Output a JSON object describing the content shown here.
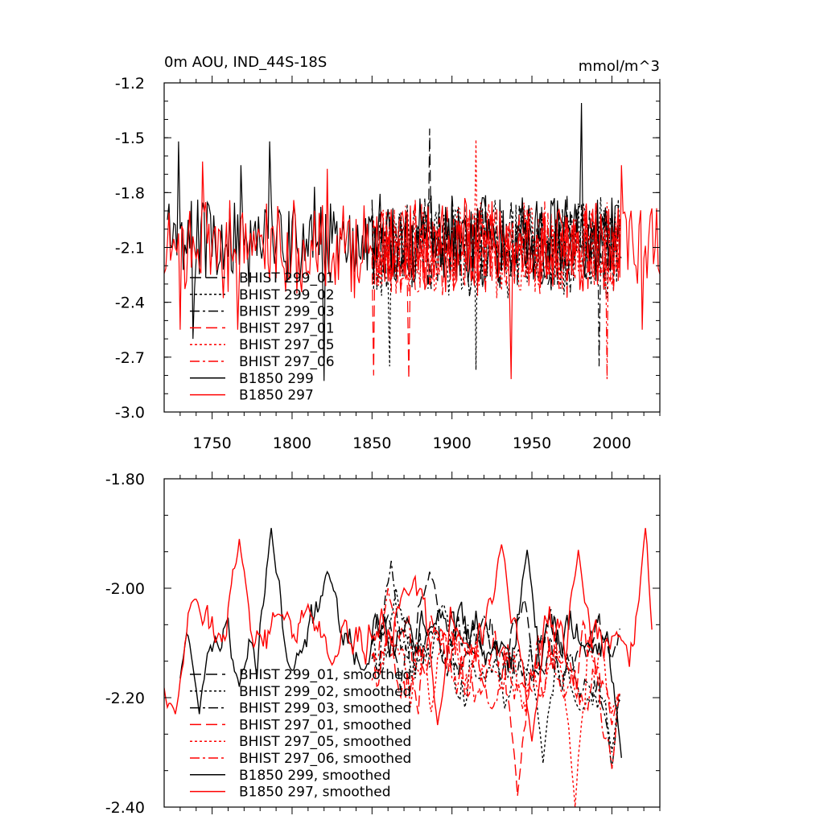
{
  "chart_data": [
    {
      "type": "line",
      "title": "0m AOU, IND_44S-18S",
      "units": "mmol/m^3",
      "xlim": [
        1720,
        2030
      ],
      "ylim": [
        -3.0,
        -1.2
      ],
      "x_ticks": [
        1750,
        1800,
        1850,
        1900,
        1950,
        2000
      ],
      "y_ticks": [
        -3.0,
        -2.7,
        -2.4,
        -2.1,
        -1.8,
        -1.5,
        -1.2
      ],
      "y_tick_labels": [
        "-3.0",
        "-2.7",
        "-2.4",
        "-2.1",
        "-1.8",
        "-1.5",
        "-1.2"
      ],
      "legend_placement": "lower-left",
      "series": [
        {
          "name": "BHIST 299_01",
          "color": "#000000",
          "dash": "long-dash",
          "x_range": [
            1850,
            2005
          ],
          "mean": -2.08,
          "amp": 0.22,
          "seed": 11,
          "points": [
            [
              1886,
              -1.45
            ]
          ]
        },
        {
          "name": "BHIST 299_02",
          "color": "#000000",
          "dash": "dot",
          "x_range": [
            1850,
            2005
          ],
          "mean": -2.1,
          "amp": 0.24,
          "seed": 12,
          "points": [
            [
              1861,
              -2.75
            ],
            [
              1915,
              -2.77
            ]
          ]
        },
        {
          "name": "BHIST 299_03",
          "color": "#000000",
          "dash": "dash-dot",
          "x_range": [
            1850,
            2005
          ],
          "mean": -2.09,
          "amp": 0.23,
          "seed": 13,
          "points": [
            [
              1992,
              -2.75
            ]
          ]
        },
        {
          "name": "BHIST 297_01",
          "color": "#ff0000",
          "dash": "long-dash",
          "x_range": [
            1850,
            2005
          ],
          "mean": -2.1,
          "amp": 0.24,
          "seed": 14,
          "points": [
            [
              1851,
              -2.8
            ],
            [
              1873,
              -2.82
            ]
          ]
        },
        {
          "name": "BHIST 297_05",
          "color": "#ff0000",
          "dash": "dot",
          "x_range": [
            1850,
            2005
          ],
          "mean": -2.1,
          "amp": 0.23,
          "seed": 15,
          "points": [
            [
              1915,
              -1.51
            ]
          ]
        },
        {
          "name": "BHIST 297_06",
          "color": "#ff0000",
          "dash": "dash-dot",
          "x_range": [
            1850,
            2005
          ],
          "mean": -2.1,
          "amp": 0.22,
          "seed": 16,
          "points": [
            [
              1997,
              -2.82
            ]
          ]
        },
        {
          "name": "B1850 299",
          "color": "#000000",
          "dash": "solid",
          "x_range": [
            1722,
            2006
          ],
          "mean": -2.05,
          "amp": 0.22,
          "seed": 17,
          "points": [
            [
              1729,
              -1.52
            ],
            [
              1738,
              -2.6
            ],
            [
              1768,
              -1.65
            ],
            [
              1786,
              -1.52
            ],
            [
              1820,
              -2.83
            ],
            [
              1981,
              -1.31
            ]
          ]
        },
        {
          "name": "B1850 297",
          "color": "#ff0000",
          "dash": "solid",
          "x_range": [
            1720,
            2030
          ],
          "mean": -2.1,
          "amp": 0.22,
          "seed": 18,
          "points": [
            [
              1730,
              -2.55
            ],
            [
              1744,
              -1.63
            ],
            [
              1766,
              -2.55
            ],
            [
              1822,
              -1.67
            ],
            [
              1937,
              -2.82
            ],
            [
              2006,
              -1.65
            ],
            [
              2019,
              -2.55
            ]
          ]
        }
      ]
    },
    {
      "type": "line",
      "xlim": [
        1720,
        2030
      ],
      "ylim": [
        -2.4,
        -1.8
      ],
      "x_ticks": [
        1750,
        1800,
        1850,
        1900,
        1950,
        2000
      ],
      "y_ticks": [
        -2.4,
        -2.2,
        -2.0,
        -1.8
      ],
      "y_tick_labels": [
        "-2.40",
        "-2.20",
        "-2.00",
        "-1.80"
      ],
      "legend_placement": "lower-left",
      "series": [
        {
          "name": "BHIST 299_01, smoothed",
          "color": "#000000",
          "dash": "long-dash",
          "x_range": [
            1850,
            2005
          ],
          "mean": -2.1,
          "amp": 0.09,
          "seed": 21,
          "points": [
            [
              1860,
              -2.05
            ],
            [
              1886,
              -1.97
            ],
            [
              1910,
              -2.12
            ],
            [
              1945,
              -2.02
            ],
            [
              1975,
              -2.15
            ],
            [
              2000,
              -2.13
            ]
          ]
        },
        {
          "name": "BHIST 299_02, smoothed",
          "color": "#000000",
          "dash": "dot",
          "x_range": [
            1850,
            2005
          ],
          "mean": -2.13,
          "amp": 0.09,
          "seed": 22,
          "points": [
            [
              1865,
              -2.0
            ],
            [
              1895,
              -2.03
            ],
            [
              1933,
              -2.22
            ],
            [
              1957,
              -2.32
            ],
            [
              1985,
              -2.2
            ],
            [
              2000,
              -2.3
            ]
          ]
        },
        {
          "name": "BHIST 299_03, smoothed",
          "color": "#000000",
          "dash": "dash-dot",
          "x_range": [
            1850,
            2005
          ],
          "mean": -2.12,
          "amp": 0.08,
          "seed": 23,
          "points": [
            [
              1862,
              -1.95
            ],
            [
              1890,
              -2.08
            ],
            [
              1920,
              -2.05
            ],
            [
              1950,
              -2.17
            ],
            [
              1980,
              -2.2
            ],
            [
              2000,
              -2.33
            ]
          ]
        },
        {
          "name": "BHIST 297_01, smoothed",
          "color": "#ff0000",
          "dash": "long-dash",
          "x_range": [
            1850,
            2005
          ],
          "mean": -2.15,
          "amp": 0.09,
          "seed": 24,
          "points": [
            [
              1860,
              -2.08
            ],
            [
              1887,
              -2.05
            ],
            [
              1920,
              -2.18
            ],
            [
              1941,
              -2.38
            ],
            [
              1970,
              -2.13
            ],
            [
              2000,
              -2.25
            ]
          ]
        },
        {
          "name": "BHIST 297_05, smoothed",
          "color": "#ff0000",
          "dash": "dot",
          "x_range": [
            1850,
            2005
          ],
          "mean": -2.15,
          "amp": 0.09,
          "seed": 25,
          "points": [
            [
              1865,
              -2.1
            ],
            [
              1895,
              -2.08
            ],
            [
              1925,
              -2.15
            ],
            [
              1955,
              -2.2
            ],
            [
              1977,
              -2.4
            ],
            [
              2000,
              -2.23
            ]
          ]
        },
        {
          "name": "BHIST 297_06, smoothed",
          "color": "#ff0000",
          "dash": "dash-dot",
          "x_range": [
            1850,
            2005
          ],
          "mean": -2.14,
          "amp": 0.09,
          "seed": 26,
          "points": [
            [
              1860,
              -2.0
            ],
            [
              1889,
              -2.07
            ],
            [
              1925,
              -2.22
            ],
            [
              1945,
              -2.18
            ],
            [
              1970,
              -2.2
            ],
            [
              2000,
              -2.33
            ]
          ]
        },
        {
          "name": "B1850 299, smoothed",
          "color": "#000000",
          "dash": "solid",
          "x_range": [
            1730,
            2006
          ],
          "mean": -2.08,
          "amp": 0.08,
          "seed": 27,
          "points": [
            [
              1730,
              -2.18
            ],
            [
              1737,
              -2.06
            ],
            [
              1742,
              -2.23
            ],
            [
              1767,
              -2.18
            ],
            [
              1787,
              -1.89
            ],
            [
              1800,
              -2.15
            ],
            [
              1822,
              -1.97
            ],
            [
              1845,
              -2.15
            ],
            [
              1887,
              -2.07
            ],
            [
              1947,
              -1.93
            ],
            [
              1985,
              -2.1
            ],
            [
              2006,
              -2.31
            ]
          ]
        },
        {
          "name": "B1850 297, smoothed",
          "color": "#ff0000",
          "dash": "solid",
          "x_range": [
            1720,
            2025
          ],
          "mean": -2.08,
          "amp": 0.08,
          "seed": 28,
          "points": [
            [
              1722,
              -2.21
            ],
            [
              1727,
              -2.23
            ],
            [
              1740,
              -2.02
            ],
            [
              1767,
              -1.91
            ],
            [
              1793,
              -2.05
            ],
            [
              1810,
              -2.03
            ],
            [
              1825,
              -2.14
            ],
            [
              1870,
              -2.0
            ],
            [
              1891,
              -2.25
            ],
            [
              1907,
              -2.1
            ],
            [
              1931,
              -1.92
            ],
            [
              1950,
              -2.28
            ],
            [
              1979,
              -1.93
            ],
            [
              2003,
              -2.08
            ],
            [
              2021,
              -1.89
            ],
            [
              2030,
              -2.2
            ]
          ]
        }
      ]
    }
  ]
}
